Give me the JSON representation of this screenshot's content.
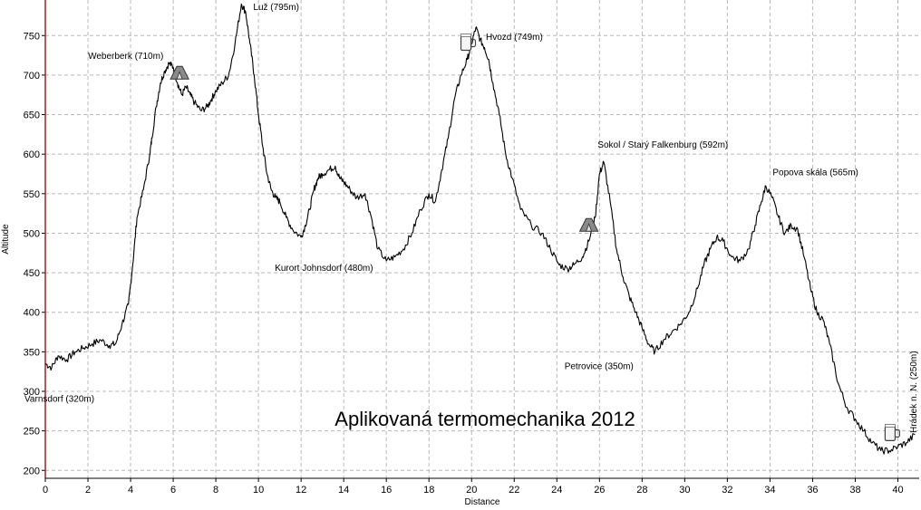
{
  "chart_data": {
    "type": "line",
    "title": "Aplikovaná termomechanika 2012",
    "xlabel": "Distance",
    "ylabel": "Altitude",
    "xlim": [
      0,
      41
    ],
    "ylim": [
      190,
      795
    ],
    "grid": true,
    "xticks": [
      0,
      2,
      4,
      6,
      8,
      10,
      12,
      14,
      16,
      18,
      20,
      22,
      24,
      26,
      28,
      30,
      32,
      34,
      36,
      38,
      40
    ],
    "yticks": [
      200,
      250,
      300,
      350,
      400,
      450,
      500,
      550,
      600,
      650,
      700,
      750
    ],
    "colors": {
      "axis_left": "#a02020",
      "line": "#000000",
      "grid": "#b8b8b8"
    },
    "series": [
      {
        "x": [
          0,
          0.3,
          0.6,
          1.0,
          1.4,
          1.8,
          2.2,
          2.6,
          3.0,
          3.3,
          3.6,
          3.9,
          4.1,
          4.3,
          4.6,
          4.9,
          5.0,
          5.2,
          5.4,
          5.6,
          5.8,
          6.0,
          6.2,
          6.4,
          6.6,
          6.8,
          7.0,
          7.3,
          7.6,
          7.8,
          8.0,
          8.3,
          8.6,
          8.9,
          9.2,
          9.4,
          9.6,
          9.8,
          10.0,
          10.2,
          10.4,
          10.6,
          10.8,
          11.0,
          11.3,
          11.6,
          12.0,
          12.2,
          12.4,
          12.6,
          12.8,
          13.0,
          13.3,
          13.6,
          13.8,
          14.0,
          14.3,
          14.6,
          15.0,
          15.3,
          15.6,
          16.0,
          16.4,
          16.8,
          17.2,
          17.6,
          18.0,
          18.3,
          18.6,
          18.9,
          19.2,
          19.5,
          19.8,
          20.0,
          20.2,
          20.4,
          20.6,
          20.8,
          21.0,
          21.3,
          21.6,
          21.9,
          22.3,
          22.8,
          23.3,
          23.7,
          24.1,
          24.5,
          24.8,
          25.2,
          25.5,
          25.8,
          26.0,
          26.2,
          26.5,
          26.8,
          27.1,
          27.4,
          27.7,
          28.0,
          28.3,
          28.6,
          29.0,
          29.4,
          29.8,
          30.2,
          30.6,
          30.9,
          31.2,
          31.5,
          31.8,
          32.2,
          32.6,
          33.0,
          33.3,
          33.6,
          33.8,
          34.1,
          34.4,
          34.7,
          35.0,
          35.3,
          35.6,
          35.9,
          36.2,
          36.5,
          36.8,
          37.2,
          37.6,
          38.0,
          38.4,
          38.8,
          39.2,
          39.6,
          40.0,
          40.4,
          40.8
        ],
        "values": [
          335,
          330,
          345,
          340,
          350,
          355,
          360,
          365,
          358,
          360,
          385,
          410,
          460,
          520,
          555,
          600,
          620,
          660,
          690,
          705,
          715,
          710,
          690,
          675,
          685,
          675,
          665,
          655,
          660,
          670,
          680,
          690,
          700,
          740,
          790,
          780,
          740,
          700,
          650,
          610,
          575,
          555,
          545,
          540,
          520,
          505,
          495,
          510,
          530,
          555,
          570,
          575,
          580,
          585,
          570,
          565,
          555,
          545,
          550,
          520,
          480,
          465,
          470,
          480,
          500,
          530,
          550,
          540,
          580,
          620,
          670,
          700,
          720,
          740,
          760,
          745,
          735,
          720,
          690,
          650,
          600,
          570,
          530,
          510,
          500,
          480,
          460,
          455,
          460,
          470,
          490,
          520,
          575,
          590,
          540,
          480,
          445,
          420,
          400,
          380,
          360,
          350,
          365,
          375,
          385,
          400,
          430,
          460,
          480,
          495,
          490,
          470,
          465,
          480,
          510,
          540,
          560,
          545,
          520,
          500,
          510,
          505,
          470,
          430,
          400,
          390,
          360,
          310,
          280,
          265,
          250,
          235,
          225,
          225,
          230,
          235,
          245
        ]
      }
    ],
    "annotations": [
      {
        "label": "Varnsdorf (320m)",
        "x": 0,
        "y": 320
      },
      {
        "label": "Weberberk (710m)",
        "x": 6,
        "y": 710
      },
      {
        "label": "Luž (795m)",
        "x": 9.5,
        "y": 795
      },
      {
        "label": "Kurort Johnsdorf (480m)",
        "x": 16,
        "y": 480
      },
      {
        "label": "Hvozd (749m)",
        "x": 20.5,
        "y": 749
      },
      {
        "label": "Sokol / Starý Falkenburg (592m)",
        "x": 26,
        "y": 592
      },
      {
        "label": "Petrovice (350m)",
        "x": 28.1,
        "y": 350
      },
      {
        "label": "Popova skála (565m)",
        "x": 33.7,
        "y": 565
      },
      {
        "label": "Hrádek n. N. (250m)",
        "x": 40.5,
        "y": 250
      }
    ],
    "markers": [
      {
        "icon": "tent-icon",
        "x": 6.3
      },
      {
        "icon": "beer-mug-icon",
        "x": 19.8
      },
      {
        "icon": "tent-icon",
        "x": 25.5
      },
      {
        "icon": "beer-mug-icon",
        "x": 39.7
      }
    ]
  }
}
